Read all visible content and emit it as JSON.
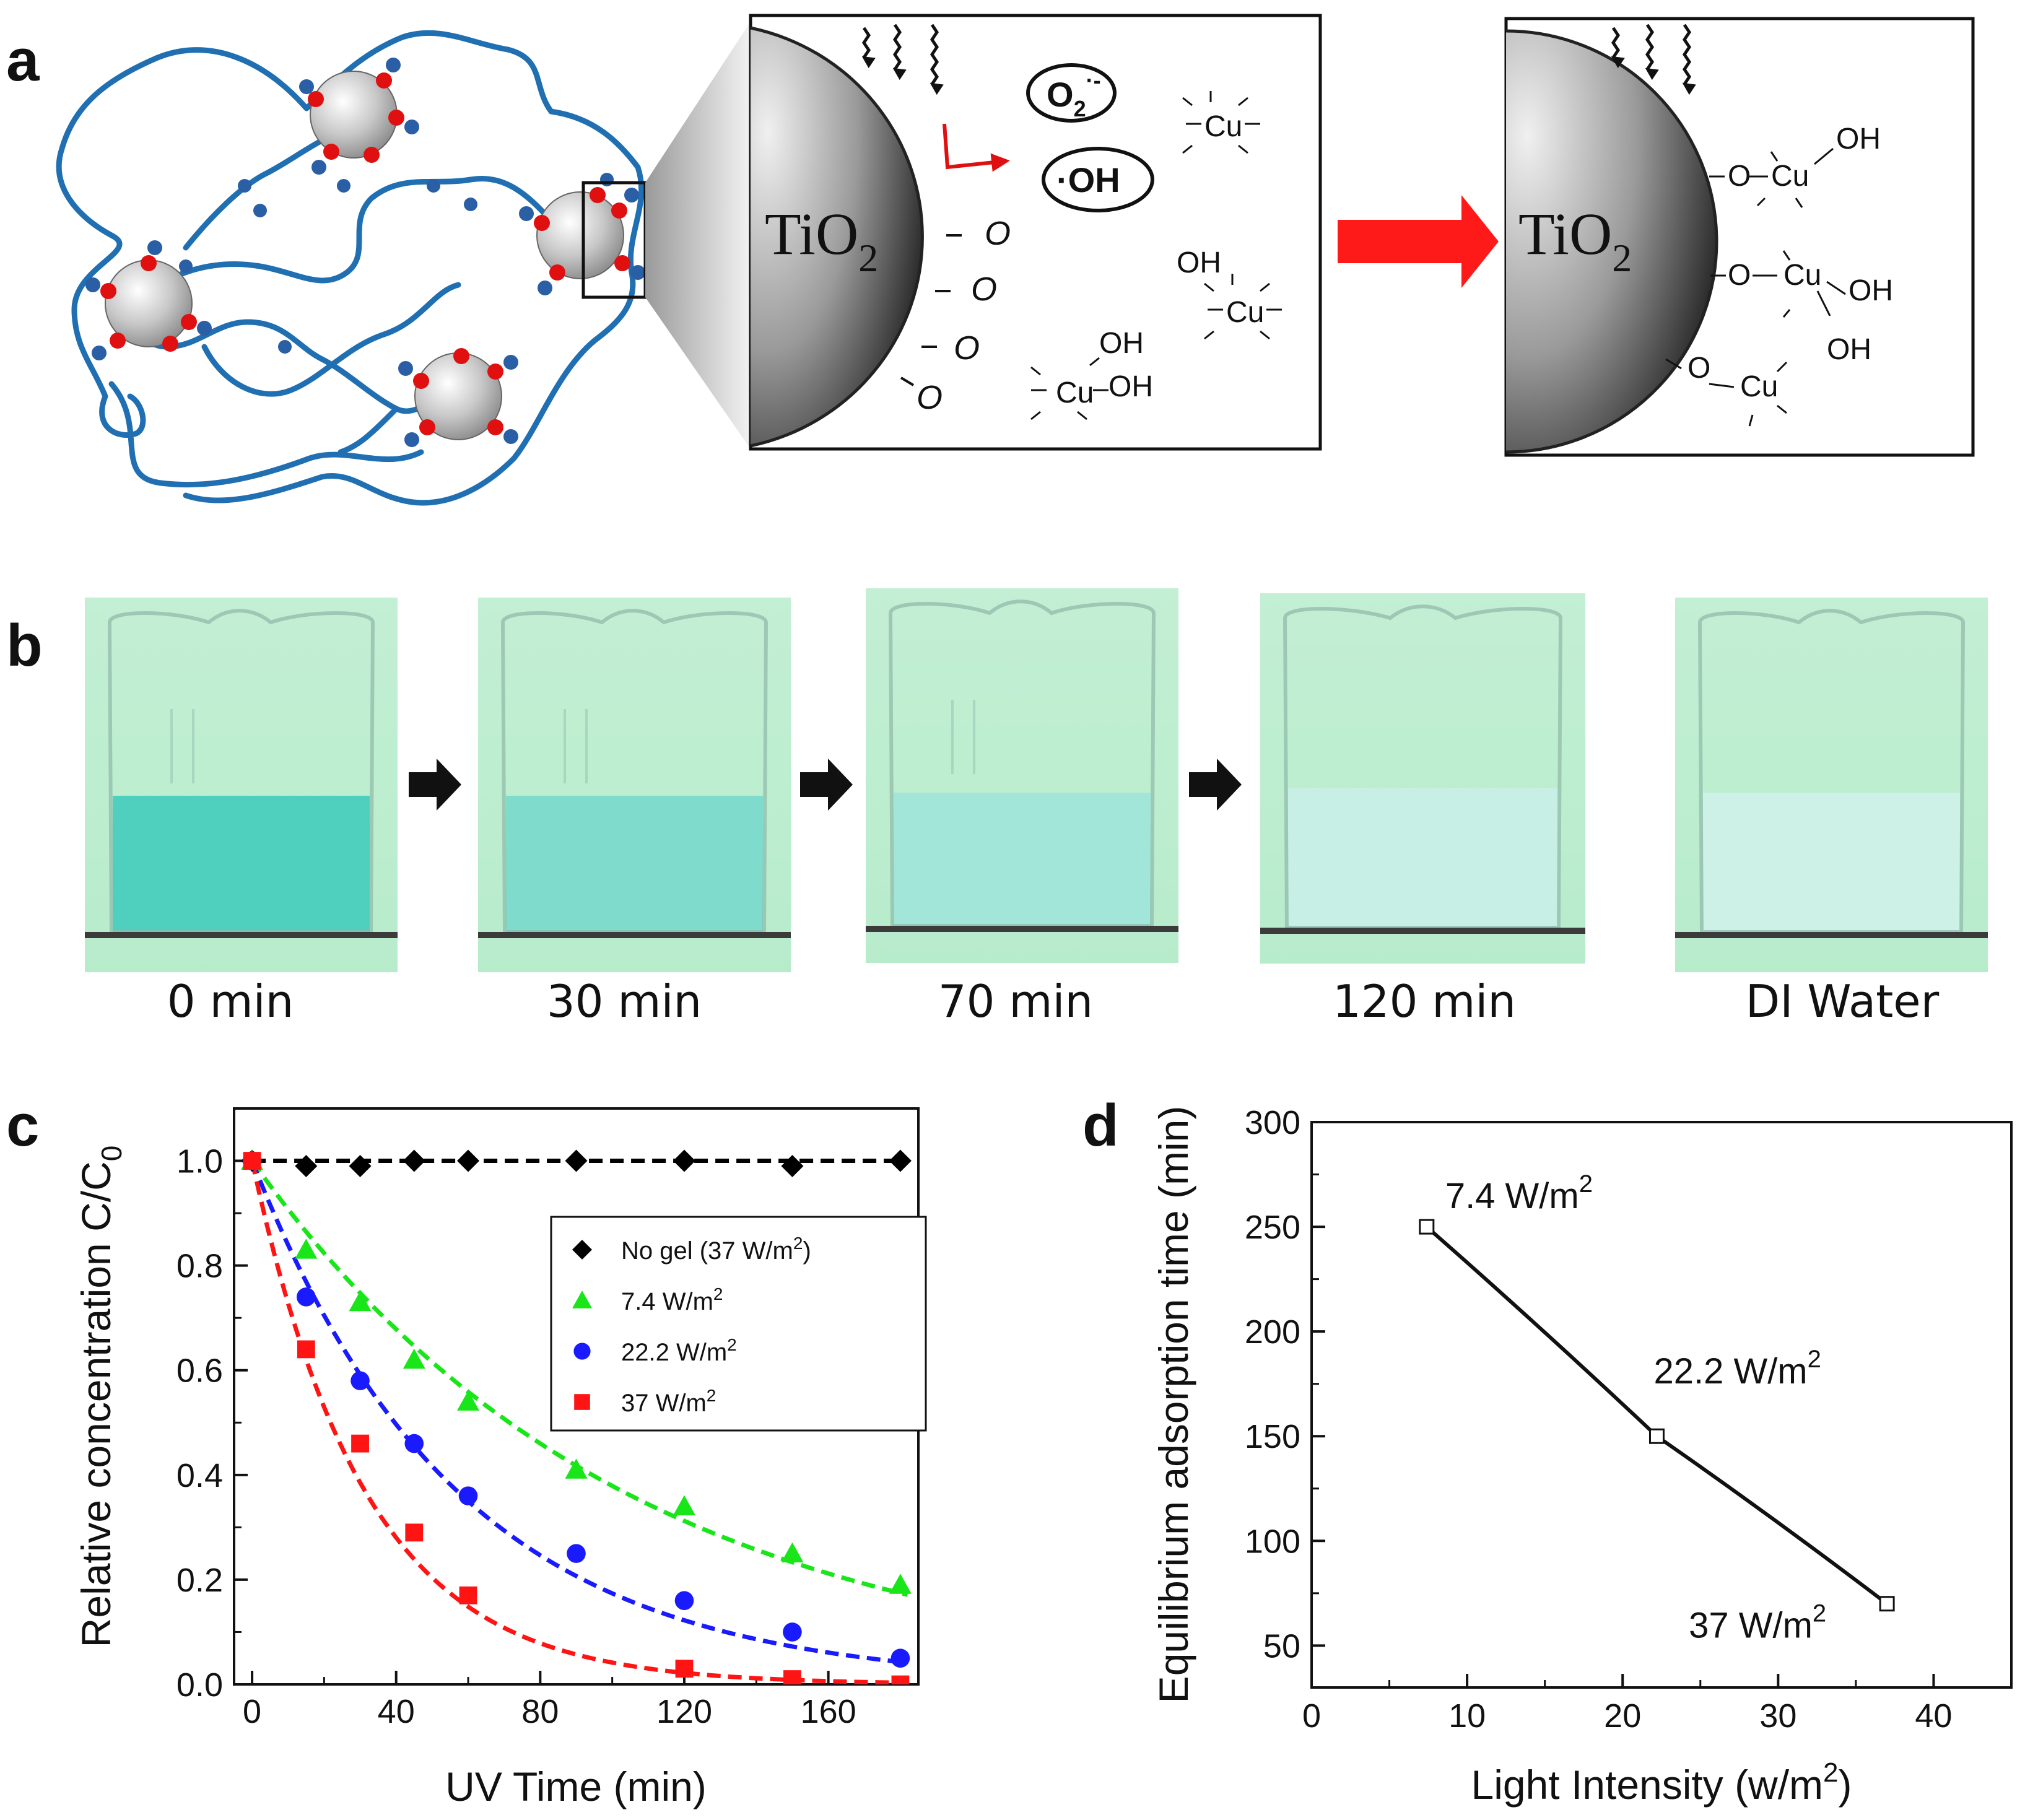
{
  "figure": {
    "panel_labels": [
      "a",
      "b",
      "c",
      "d"
    ],
    "panel_a": {
      "particle_label_main": "TiO",
      "particle_label_sub": "2",
      "radical_superoxide": "O",
      "radical_superoxide_sub": "2",
      "radical_superoxide_sup": "·-",
      "radical_hydroxyl": "·OH",
      "surface_atom": "O",
      "copper_symbol": "Cu",
      "hydroxide": "OH"
    },
    "panel_b": {
      "captions": [
        "0 min",
        "30 min",
        "70 min",
        "120 min",
        "DI Water"
      ],
      "liquid_colors": [
        "#4fd0be",
        "#7fdccd",
        "#a2e6d9",
        "#c8efe6",
        "#cdf0e7"
      ]
    }
  },
  "chart_data": [
    {
      "type": "scatter",
      "panel": "c",
      "xlabel": "UV Time (min)",
      "ylabel_main": "Relative concentration C/C",
      "ylabel_sub": "0",
      "xlim": [
        -5,
        185
      ],
      "ylim": [
        0.0,
        1.1
      ],
      "xticks": [
        "0",
        "40",
        "80",
        "120",
        "160"
      ],
      "yticks": [
        "0.0",
        "0.2",
        "0.4",
        "0.6",
        "0.8",
        "1.0"
      ],
      "series": [
        {
          "name": "No gel (37 W/m²)",
          "legend_main": "No gel (37 W/m",
          "legend_sup": "2",
          "legend_tail": ")",
          "color": "#000000",
          "marker": "diamond",
          "x": [
            0,
            15,
            30,
            45,
            60,
            90,
            120,
            150,
            180
          ],
          "y": [
            1.0,
            0.99,
            0.99,
            1.0,
            1.0,
            1.0,
            1.0,
            0.99,
            1.0
          ],
          "fit_k": 0.0
        },
        {
          "name": "7.4 W/m²",
          "legend_main": "7.4 W/m",
          "legend_sup": "2",
          "legend_tail": "",
          "color": "#19e619",
          "marker": "triangle",
          "x": [
            0,
            15,
            30,
            45,
            60,
            90,
            120,
            150,
            180
          ],
          "y": [
            1.0,
            0.83,
            0.73,
            0.62,
            0.54,
            0.41,
            0.34,
            0.25,
            0.19
          ],
          "fit_k": 0.0097
        },
        {
          "name": "22.2 W/m²",
          "legend_main": "22.2 W/m",
          "legend_sup": "2",
          "legend_tail": "",
          "color": "#1a1aff",
          "marker": "circle",
          "x": [
            0,
            15,
            30,
            45,
            60,
            90,
            120,
            150,
            180
          ],
          "y": [
            1.0,
            0.74,
            0.58,
            0.46,
            0.36,
            0.25,
            0.16,
            0.1,
            0.05
          ],
          "fit_k": 0.0175
        },
        {
          "name": "37 W/m²",
          "legend_main": "37 W/m",
          "legend_sup": "2",
          "legend_tail": "",
          "color": "#ff1414",
          "marker": "square",
          "x": [
            0,
            15,
            30,
            45,
            60,
            120,
            150,
            180
          ],
          "y": [
            1.0,
            0.64,
            0.46,
            0.29,
            0.17,
            0.03,
            0.01,
            0.0
          ],
          "fit_k": 0.0318
        }
      ]
    },
    {
      "type": "line",
      "panel": "d",
      "xlabel_main": "Light Intensity (w/m",
      "xlabel_sup": "2",
      "xlabel_tail": ")",
      "ylabel": "Equilibrium adsorption time (min)",
      "xlim": [
        0,
        45
      ],
      "ylim": [
        30,
        300
      ],
      "xticks": [
        "0",
        "10",
        "20",
        "30",
        "40"
      ],
      "yticks": [
        "50",
        "100",
        "150",
        "200",
        "250",
        "300"
      ],
      "x": [
        7.4,
        22.2,
        37.0
      ],
      "y": [
        250,
        150,
        70
      ],
      "point_labels_main": [
        "7.4 W/m",
        "22.2 W/m",
        "37 W/m"
      ],
      "point_labels_sup": [
        "2",
        "2",
        "2"
      ]
    }
  ]
}
